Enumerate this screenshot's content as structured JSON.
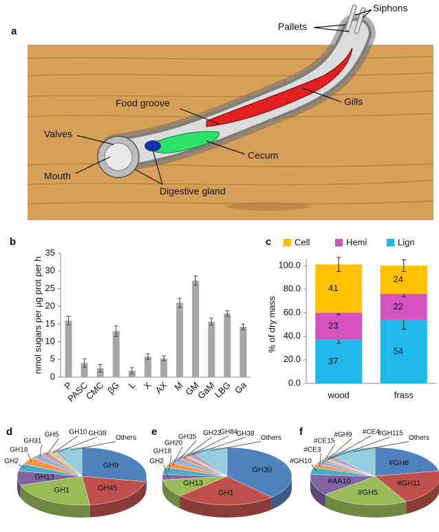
{
  "illustration": {
    "panel_label": "a",
    "labels": {
      "siphons": "Siphons",
      "pallets": "Pallets",
      "gills": "Gills",
      "food_groove": "Food groove",
      "valves": "Valves",
      "cecum": "Cecum",
      "mouth": "Mouth",
      "digestive_gland": "Digestive gland"
    }
  },
  "chart_data": [
    {
      "type": "bar",
      "panel_label": "b",
      "y_label": "nmol sugars per µg prot per h",
      "categories": [
        "P",
        "PASC",
        "CMC",
        "βG",
        "L",
        "X",
        "AX",
        "M",
        "GM",
        "GaM",
        "LBG",
        "Ga"
      ],
      "values": [
        16,
        4,
        2.5,
        13,
        1.8,
        5.8,
        5.3,
        21,
        27.3,
        15.7,
        18,
        14.2
      ],
      "errors": [
        1.2,
        1.2,
        1.1,
        1.5,
        0.9,
        0.8,
        0.7,
        1.3,
        1.3,
        1.0,
        0.8,
        0.8
      ],
      "color": "#a6a6a6",
      "ylim": [
        0,
        35
      ],
      "yticks": [
        0,
        5,
        10,
        15,
        20,
        25,
        30,
        35
      ]
    },
    {
      "type": "stacked_bar",
      "panel_label": "c",
      "y_label": "% of dry mass",
      "categories": [
        "wood",
        "frass"
      ],
      "series": [
        {
          "name": "Lign",
          "color": "#1fb8ea",
          "values": [
            37,
            54
          ],
          "errors": [
            3,
            8
          ]
        },
        {
          "name": "Hemi",
          "color": "#d652bf",
          "values": [
            23,
            22
          ],
          "errors": [
            1.5,
            2.5
          ]
        },
        {
          "name": "Cell",
          "color": "#ffc000",
          "values": [
            41,
            24
          ],
          "errors": [
            6,
            5
          ]
        }
      ],
      "ylim": [
        0,
        100
      ],
      "yticks": [
        {
          "value": 0,
          "label": "0.0"
        },
        {
          "value": 20,
          "label": "20.0"
        },
        {
          "value": 40,
          "label": "40.0"
        },
        {
          "value": 60,
          "label": "60.0"
        },
        {
          "value": 80,
          "label": "80.0"
        },
        {
          "value": 100,
          "label": "100.0"
        }
      ],
      "legend": "top"
    },
    {
      "type": "pie",
      "panel_label": "d",
      "categories": [
        "GH9",
        "GH45",
        "GH1",
        "GH13",
        "GH2",
        "GH18",
        "GH31",
        "GH5",
        "GH10",
        "GH38",
        "Others"
      ],
      "values": [
        28,
        20,
        22,
        8,
        4,
        4,
        3,
        2,
        2,
        1,
        6
      ],
      "colors": [
        "#4f81bd",
        "#c0504d",
        "#9bbb59",
        "#8064a2",
        "#4bacc6",
        "#f79646",
        "#95b3d7",
        "#d99694",
        "#c3d69b",
        "#b3a2c7",
        "#93cddd"
      ]
    },
    {
      "type": "pie",
      "panel_label": "e",
      "categories": [
        "GH30",
        "GH1",
        "GH13",
        "GH2",
        "GH18",
        "GH20",
        "GH35",
        "GH22",
        "GH84",
        "GH38",
        "Others"
      ],
      "values": [
        38,
        25,
        10,
        3,
        4,
        3,
        3,
        2,
        1,
        2,
        9
      ],
      "colors": [
        "#4f81bd",
        "#c0504d",
        "#9bbb59",
        "#8064a2",
        "#4bacc6",
        "#f79646",
        "#95b3d7",
        "#d99694",
        "#c3d69b",
        "#b3a2c7",
        "#93cddd"
      ]
    },
    {
      "type": "pie",
      "panel_label": "f",
      "categories": [
        "#GH6",
        "#GH11",
        "#GH5",
        "#AA10",
        "#GH10",
        "#CE3",
        "#CE15",
        "#GH9",
        "#CE4",
        "#GH115",
        "Others"
      ],
      "values": [
        22,
        20,
        22,
        12,
        4,
        2,
        2,
        1,
        1,
        2,
        12
      ],
      "colors": [
        "#4f81bd",
        "#c0504d",
        "#9bbb59",
        "#8064a2",
        "#4bacc6",
        "#f79646",
        "#95b3d7",
        "#d99694",
        "#c3d69b",
        "#b3a2c7",
        "#93cddd"
      ]
    }
  ]
}
